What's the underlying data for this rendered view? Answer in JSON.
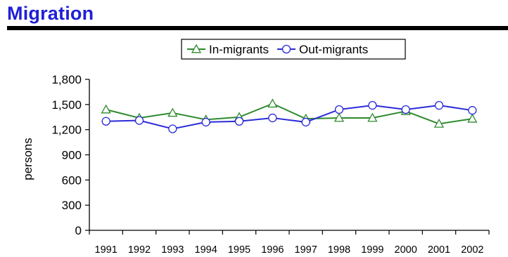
{
  "page": {
    "title": "Migration"
  },
  "chart_data": {
    "type": "line",
    "title": "",
    "xlabel": "",
    "ylabel": "persons",
    "x": [
      "1991",
      "1992",
      "1993",
      "1994",
      "1995",
      "1996",
      "1997",
      "1998",
      "1999",
      "2000",
      "2001",
      "2002"
    ],
    "ylim": [
      0,
      1800
    ],
    "yticks": [
      0,
      300,
      600,
      900,
      1200,
      1500,
      1800
    ],
    "ytick_labels": [
      "0",
      "300",
      "600",
      "900",
      "1,200",
      "1,500",
      "1,800"
    ],
    "grid": false,
    "legend_position": "top",
    "series": [
      {
        "name": "In-migrants",
        "color": "#2e8b2e",
        "marker": "triangle",
        "values": [
          1440,
          1340,
          1400,
          1320,
          1350,
          1510,
          1330,
          1340,
          1340,
          1420,
          1270,
          1330
        ]
      },
      {
        "name": "Out-migrants",
        "color": "#2b2bd9",
        "marker": "circle",
        "values": [
          1300,
          1310,
          1210,
          1290,
          1300,
          1340,
          1290,
          1440,
          1490,
          1440,
          1490,
          1430
        ]
      }
    ]
  }
}
